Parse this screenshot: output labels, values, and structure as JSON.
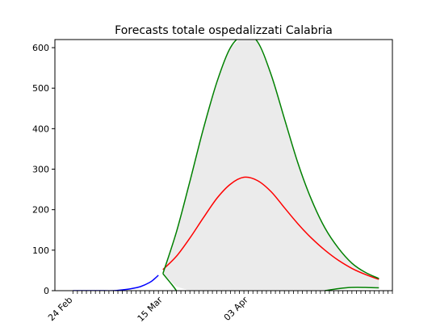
{
  "chart_data": {
    "type": "line",
    "title": "Forecasts totale ospedalizzati Calabria",
    "xlabel": "",
    "ylabel": "",
    "x_axis": {
      "type": "date",
      "xlim": [
        "2020-02-20",
        "2020-05-05"
      ],
      "tick_labels": [
        {
          "date": "2020-02-24",
          "label": "24 Feb"
        },
        {
          "date": "2020-03-15",
          "label": "15 Mar"
        },
        {
          "date": "2020-04-03",
          "label": "03 Apr"
        }
      ]
    },
    "y_axis": {
      "ylim": [
        0,
        620
      ],
      "ticks": [
        0,
        100,
        200,
        300,
        400,
        500,
        600
      ]
    },
    "grid": false,
    "legend": "none",
    "band": {
      "color": "#ebebeb",
      "x": [
        "2020-03-15",
        "2020-03-18",
        "2020-03-21",
        "2020-03-24",
        "2020-03-27",
        "2020-03-30",
        "2020-04-02",
        "2020-04-05",
        "2020-04-08",
        "2020-04-11",
        "2020-04-14",
        "2020-04-17",
        "2020-04-20",
        "2020-04-23",
        "2020-04-26",
        "2020-04-29",
        "2020-05-02"
      ],
      "upper": [
        42,
        145,
        270,
        400,
        515,
        600,
        630,
        615,
        535,
        425,
        315,
        225,
        155,
        105,
        68,
        45,
        30
      ],
      "lower": [
        42,
        10,
        0,
        0,
        0,
        0,
        0,
        0,
        0,
        0,
        0,
        0,
        0,
        3,
        7,
        8,
        7
      ]
    },
    "series": [
      {
        "color": "#0000ff",
        "x": [
          "2020-02-24",
          "2020-02-27",
          "2020-03-01",
          "2020-03-04",
          "2020-03-06",
          "2020-03-08",
          "2020-03-10",
          "2020-03-12",
          "2020-03-13",
          "2020-03-14"
        ],
        "values": [
          0,
          0,
          0,
          0,
          2,
          5,
          10,
          20,
          28,
          38
        ]
      },
      {
        "color": "#ff0000",
        "x": [
          "2020-03-15",
          "2020-03-18",
          "2020-03-21",
          "2020-03-24",
          "2020-03-27",
          "2020-03-30",
          "2020-04-02",
          "2020-04-05",
          "2020-04-08",
          "2020-04-11",
          "2020-04-14",
          "2020-04-17",
          "2020-04-20",
          "2020-04-23",
          "2020-04-26",
          "2020-04-29",
          "2020-05-02"
        ],
        "values": [
          52,
          85,
          130,
          180,
          228,
          263,
          280,
          272,
          245,
          205,
          165,
          130,
          100,
          75,
          55,
          40,
          28
        ]
      },
      {
        "color": "#008000",
        "x": [
          "2020-03-15",
          "2020-03-18",
          "2020-03-21",
          "2020-03-24",
          "2020-03-27",
          "2020-03-30",
          "2020-04-02",
          "2020-04-05",
          "2020-04-08",
          "2020-04-11",
          "2020-04-14",
          "2020-04-17",
          "2020-04-20",
          "2020-04-23",
          "2020-04-26",
          "2020-04-29",
          "2020-05-02"
        ],
        "values": [
          42,
          145,
          270,
          400,
          515,
          600,
          630,
          615,
          535,
          425,
          315,
          225,
          155,
          105,
          68,
          45,
          30
        ]
      },
      {
        "color": "#008000",
        "x": [
          "2020-03-15",
          "2020-03-17",
          "2020-03-18"
        ],
        "values": [
          42,
          15,
          0
        ]
      },
      {
        "color": "#008000",
        "x": [
          "2020-04-20",
          "2020-04-23",
          "2020-04-26",
          "2020-04-29",
          "2020-05-02"
        ],
        "values": [
          0,
          5,
          8,
          8,
          7
        ]
      }
    ]
  }
}
